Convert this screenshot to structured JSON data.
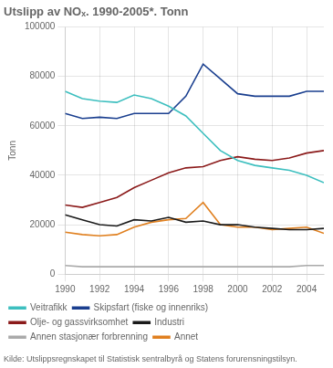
{
  "chart_data": {
    "type": "line",
    "title": "Utslipp av NOₓ. 1990-2005*. Tonn",
    "ylabel": "Tonn",
    "annotations": [
      "Kilde: Utslippsregnskapet til Statistisk sentralbyrå og Statens forurensningstilsyn."
    ],
    "x": [
      1990,
      1991,
      1992,
      1993,
      1994,
      1995,
      1996,
      1997,
      1998,
      1999,
      2000,
      2001,
      2002,
      2003,
      2004,
      2005
    ],
    "series": [
      {
        "name": "Veitrafikk",
        "color": "#3dbfbf",
        "values": [
          74000,
          71000,
          70000,
          69500,
          72500,
          71000,
          68000,
          64000,
          57000,
          50000,
          46000,
          44000,
          43000,
          42000,
          40000,
          37000
        ]
      },
      {
        "name": "Skipsfart (fiske og innenriks)",
        "color": "#1a3f8f",
        "values": [
          65000,
          63000,
          63500,
          63000,
          65000,
          65000,
          65000,
          72000,
          85000,
          79000,
          73000,
          72000,
          72000,
          72000,
          74000,
          74000
        ]
      },
      {
        "name": "Olje- og gassvirksomhet",
        "color": "#8b1a1a",
        "values": [
          28000,
          27000,
          29000,
          31000,
          35000,
          38000,
          41000,
          43000,
          43500,
          46000,
          47500,
          46500,
          46000,
          47000,
          49000,
          50000
        ]
      },
      {
        "name": "Industri",
        "color": "#1a1a1a",
        "values": [
          24000,
          22000,
          20000,
          19500,
          22000,
          21500,
          23000,
          21000,
          21500,
          20000,
          20000,
          19000,
          18500,
          18000,
          18000,
          18500
        ]
      },
      {
        "name": "Annen stasjonær forbrenning",
        "color": "#aaaaaa",
        "values": [
          3500,
          3000,
          3000,
          3000,
          3000,
          3000,
          3000,
          3000,
          3000,
          3000,
          3000,
          3000,
          3000,
          3000,
          3500,
          3500
        ]
      },
      {
        "name": "Annet",
        "color": "#e08020",
        "values": [
          17000,
          16000,
          15500,
          16000,
          19000,
          21000,
          22000,
          22500,
          29000,
          20000,
          19000,
          19000,
          18000,
          18500,
          19000,
          16500
        ]
      }
    ],
    "xlim": [
      1990,
      2005
    ],
    "xticks": [
      1990,
      1992,
      1994,
      1996,
      1998,
      2000,
      2002,
      2004
    ],
    "ylim": [
      0,
      100000
    ],
    "yticks": [
      0,
      20000,
      40000,
      60000,
      80000,
      100000
    ],
    "grid": true,
    "legend": "bottom",
    "marker": "none",
    "line_style": "solid"
  }
}
